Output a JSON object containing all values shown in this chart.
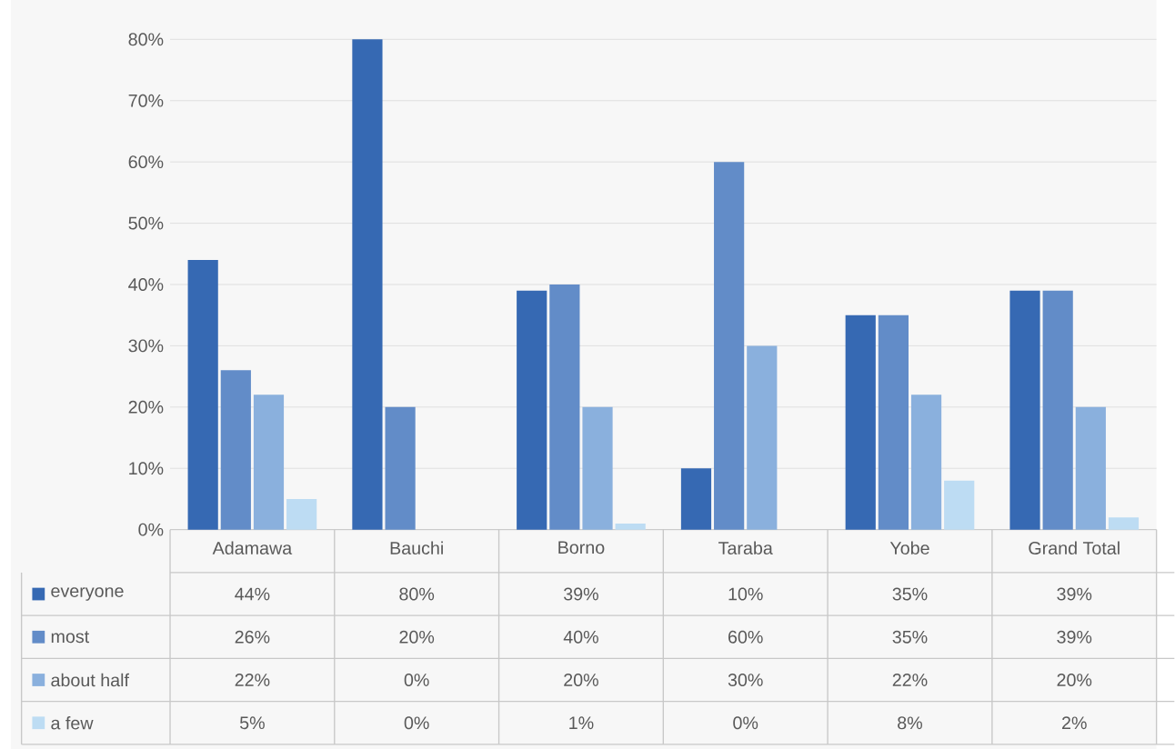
{
  "chart_data": {
    "type": "bar",
    "categories": [
      "Adamawa",
      "Bauchi",
      "Borno",
      "Taraba",
      "Yobe",
      "Grand Total"
    ],
    "series": [
      {
        "name": "everyone",
        "color": "#3669b3",
        "values": [
          44,
          80,
          39,
          10,
          35,
          39
        ],
        "value_labels": [
          "44%",
          "80%",
          "39%",
          "10%",
          "35%",
          "39%"
        ]
      },
      {
        "name": "most",
        "color": "#628cc8",
        "values": [
          26,
          20,
          40,
          60,
          35,
          39
        ],
        "value_labels": [
          "26%",
          "20%",
          "40%",
          "60%",
          "35%",
          "39%"
        ]
      },
      {
        "name": "about half",
        "color": "#8ab0dd",
        "values": [
          22,
          0,
          20,
          30,
          22,
          20
        ],
        "value_labels": [
          "22%",
          "0%",
          "20%",
          "30%",
          "22%",
          "20%"
        ]
      },
      {
        "name": "a few",
        "color": "#bddcf3",
        "values": [
          5,
          0,
          1,
          0,
          8,
          2
        ],
        "value_labels": [
          "5%",
          "0%",
          "1%",
          "0%",
          "8%",
          "2%"
        ]
      }
    ],
    "ylim": [
      0,
      80
    ],
    "yticks": [
      {
        "value": 0,
        "label": "0%"
      },
      {
        "value": 10,
        "label": "10%"
      },
      {
        "value": 20,
        "label": "20%"
      },
      {
        "value": 30,
        "label": "30%"
      },
      {
        "value": 40,
        "label": "40%"
      },
      {
        "value": 50,
        "label": "50%"
      },
      {
        "value": 60,
        "label": "60%"
      },
      {
        "value": 70,
        "label": "70%"
      },
      {
        "value": 80,
        "label": "80%"
      }
    ],
    "grid": "y",
    "legend": "bottom"
  }
}
